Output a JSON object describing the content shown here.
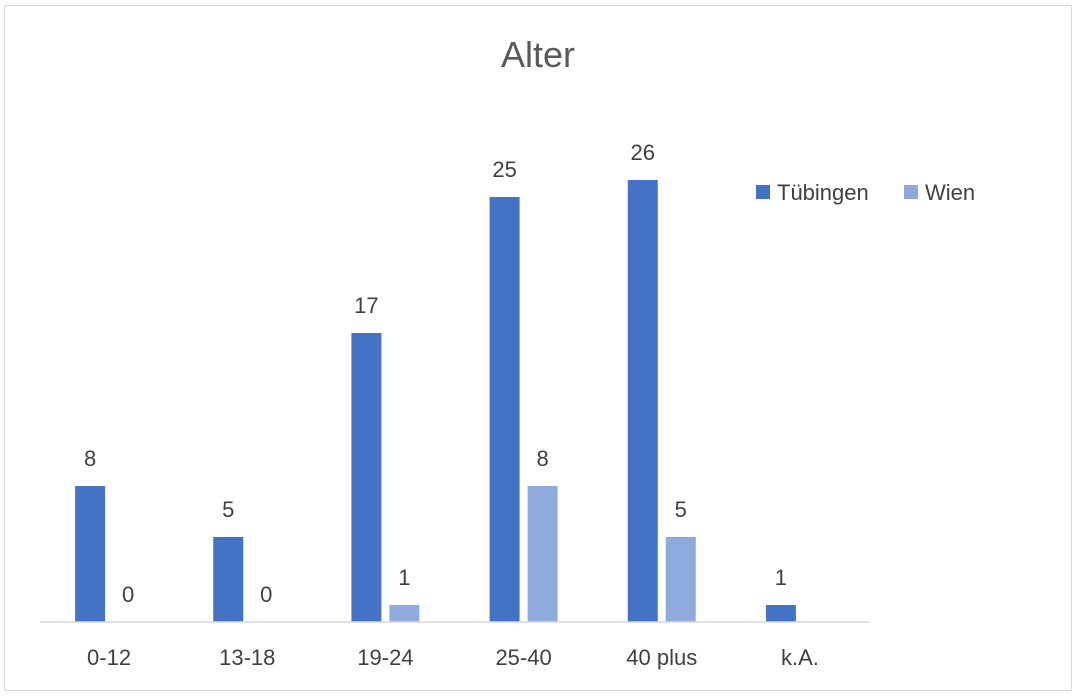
{
  "chart_data": {
    "type": "bar",
    "title": "Alter",
    "xlabel": "",
    "ylabel": "",
    "categories": [
      "0-12",
      "13-18",
      "19-24",
      "25-40",
      "40 plus",
      "k.A."
    ],
    "series": [
      {
        "name": "Tübingen",
        "color": "#4472c4",
        "values": [
          8,
          5,
          17,
          25,
          26,
          1
        ]
      },
      {
        "name": "Wien",
        "color": "#8faadc",
        "values": [
          0,
          0,
          1,
          8,
          5,
          null
        ]
      }
    ],
    "ylim": [
      0,
      27
    ],
    "grid": false,
    "legend": "right",
    "data_labels": true
  },
  "colors": {
    "axis_line": "#d9d9d9",
    "frame_border": "#d9d9d9"
  }
}
